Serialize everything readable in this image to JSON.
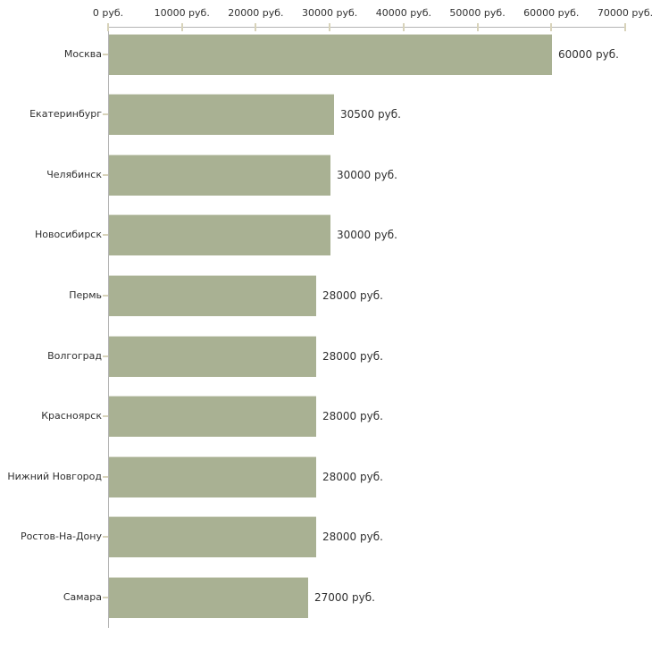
{
  "chart_data": {
    "type": "bar",
    "orientation": "horizontal",
    "title": "",
    "xlabel": "",
    "ylabel": "",
    "unit": "руб.",
    "xlim": [
      0,
      70000
    ],
    "grid": false,
    "legend": null,
    "categories": [
      "Москва",
      "Екатеринбург",
      "Челябинск",
      "Новосибирск",
      "Пермь",
      "Волгоград",
      "Красноярск",
      "Нижний Новгород",
      "Ростов-На-Дону",
      "Самара"
    ],
    "values": [
      60000,
      30500,
      30000,
      30000,
      28000,
      28000,
      28000,
      28000,
      28000,
      27000
    ],
    "bar_labels": [
      "60000 руб.",
      "30500 руб.",
      "30000 руб.",
      "30000 руб.",
      "28000 руб.",
      "28000 руб.",
      "28000 руб.",
      "28000 руб.",
      "28000 руб.",
      "27000 руб."
    ],
    "x_tick_values": [
      0,
      10000,
      20000,
      30000,
      40000,
      50000,
      60000,
      70000
    ],
    "x_tick_labels": [
      "0 руб.",
      "10000 руб.",
      "20000 руб.",
      "30000 руб.",
      "40000 руб.",
      "50000 руб.",
      "60000 руб.",
      "70000 руб."
    ],
    "colors": {
      "bar": "#a9b193",
      "bar_top_edge": "#dcdfd2",
      "axis": "#b4b4b4",
      "tick": "#d8d3ba",
      "text": "#303030",
      "background": "#ffffff"
    }
  }
}
